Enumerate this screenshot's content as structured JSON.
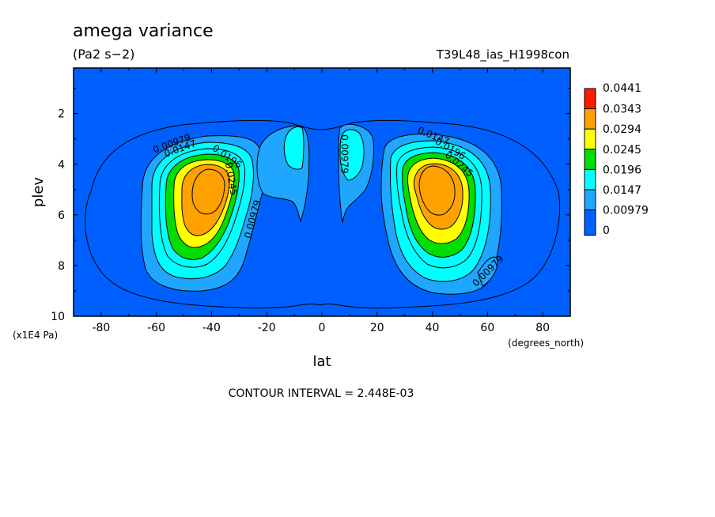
{
  "chart_data": {
    "type": "contour",
    "title": "amega variance",
    "units": "(Pa2 s−2)",
    "run_label": "T39L48_ias_H1998con",
    "xlabel": "lat",
    "x_units": "(degrees_north)",
    "ylabel": "plev",
    "y_units": "(x1E4 Pa)",
    "xlim": [
      -90,
      90
    ],
    "ylim": [
      10,
      0.2
    ],
    "x_ticks": [
      "-80",
      "-60",
      "-40",
      "-20",
      "0",
      "20",
      "40",
      "60",
      "80"
    ],
    "x_tick_values": [
      -80,
      -60,
      -40,
      -20,
      0,
      20,
      40,
      60,
      80
    ],
    "y_ticks": [
      "2",
      "4",
      "6",
      "8",
      "10"
    ],
    "y_tick_values": [
      2,
      4,
      6,
      8,
      10
    ],
    "contour_interval_text": "CONTOUR INTERVAL = 2.448E-03",
    "colorbar": {
      "labels": [
        "0.0441",
        "0.0343",
        "0.0294",
        "0.0245",
        "0.0196",
        "0.0147",
        "0.00979",
        "0"
      ],
      "colors": [
        "#ff1a00",
        "#ffa200",
        "#ffff00",
        "#00dd00",
        "#00ffff",
        "#1fa6ff",
        "#0060ff"
      ]
    },
    "contour_labels": [
      {
        "text": "0.00979",
        "lat": -54,
        "plev": 3.3
      },
      {
        "text": "0.0147",
        "lat": -51,
        "plev": 3.5
      },
      {
        "text": "0.0196",
        "lat": -35,
        "plev": 3.8
      },
      {
        "text": "0.0245",
        "lat": -34,
        "plev": 4.6
      },
      {
        "text": "0.00979",
        "lat": -24,
        "plev": 6.2
      },
      {
        "text": "0.00979",
        "lat": 7,
        "plev": 3.6
      },
      {
        "text": "0.0147",
        "lat": 40,
        "plev": 3.0
      },
      {
        "text": "0.0196",
        "lat": 46,
        "plev": 3.5
      },
      {
        "text": "0.0245",
        "lat": 49,
        "plev": 4.1
      },
      {
        "text": "0.00979",
        "lat": 61,
        "plev": 8.3
      }
    ]
  }
}
